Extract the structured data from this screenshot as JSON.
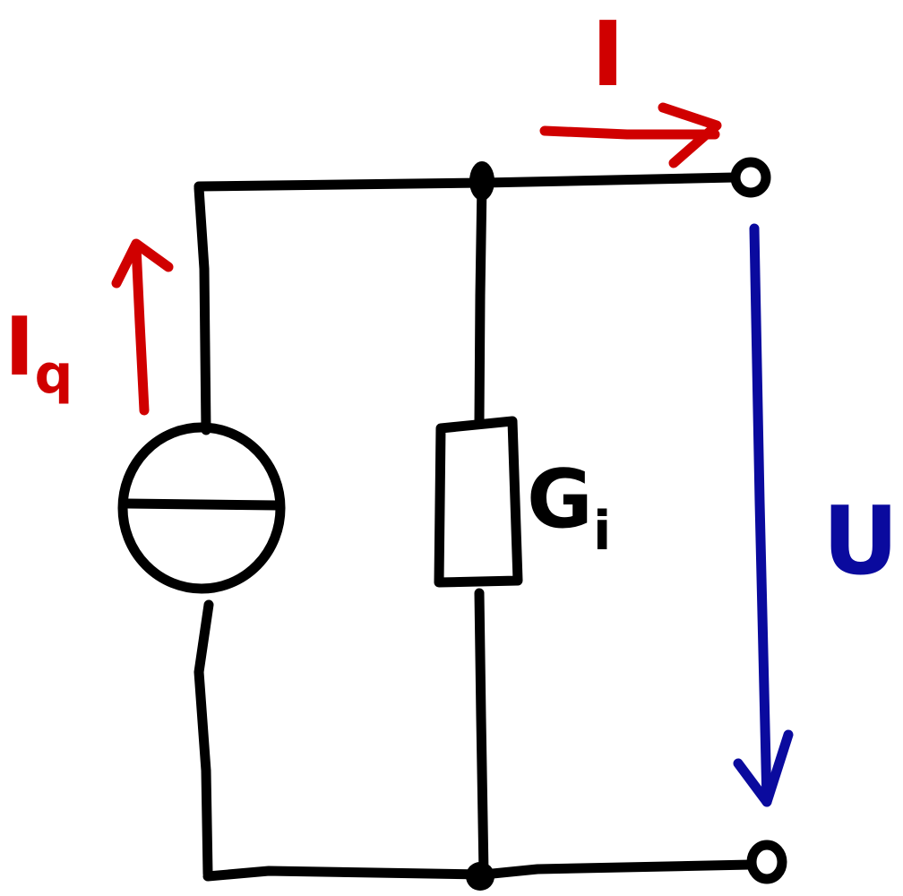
{
  "labels": {
    "output_current": "I",
    "source_current": "I",
    "source_current_subscript": "q",
    "conductance": "G",
    "conductance_subscript": "i",
    "voltage": "U"
  },
  "colors": {
    "wire": "#000000",
    "current": "#d00000",
    "voltage": "#0a0a9e"
  }
}
